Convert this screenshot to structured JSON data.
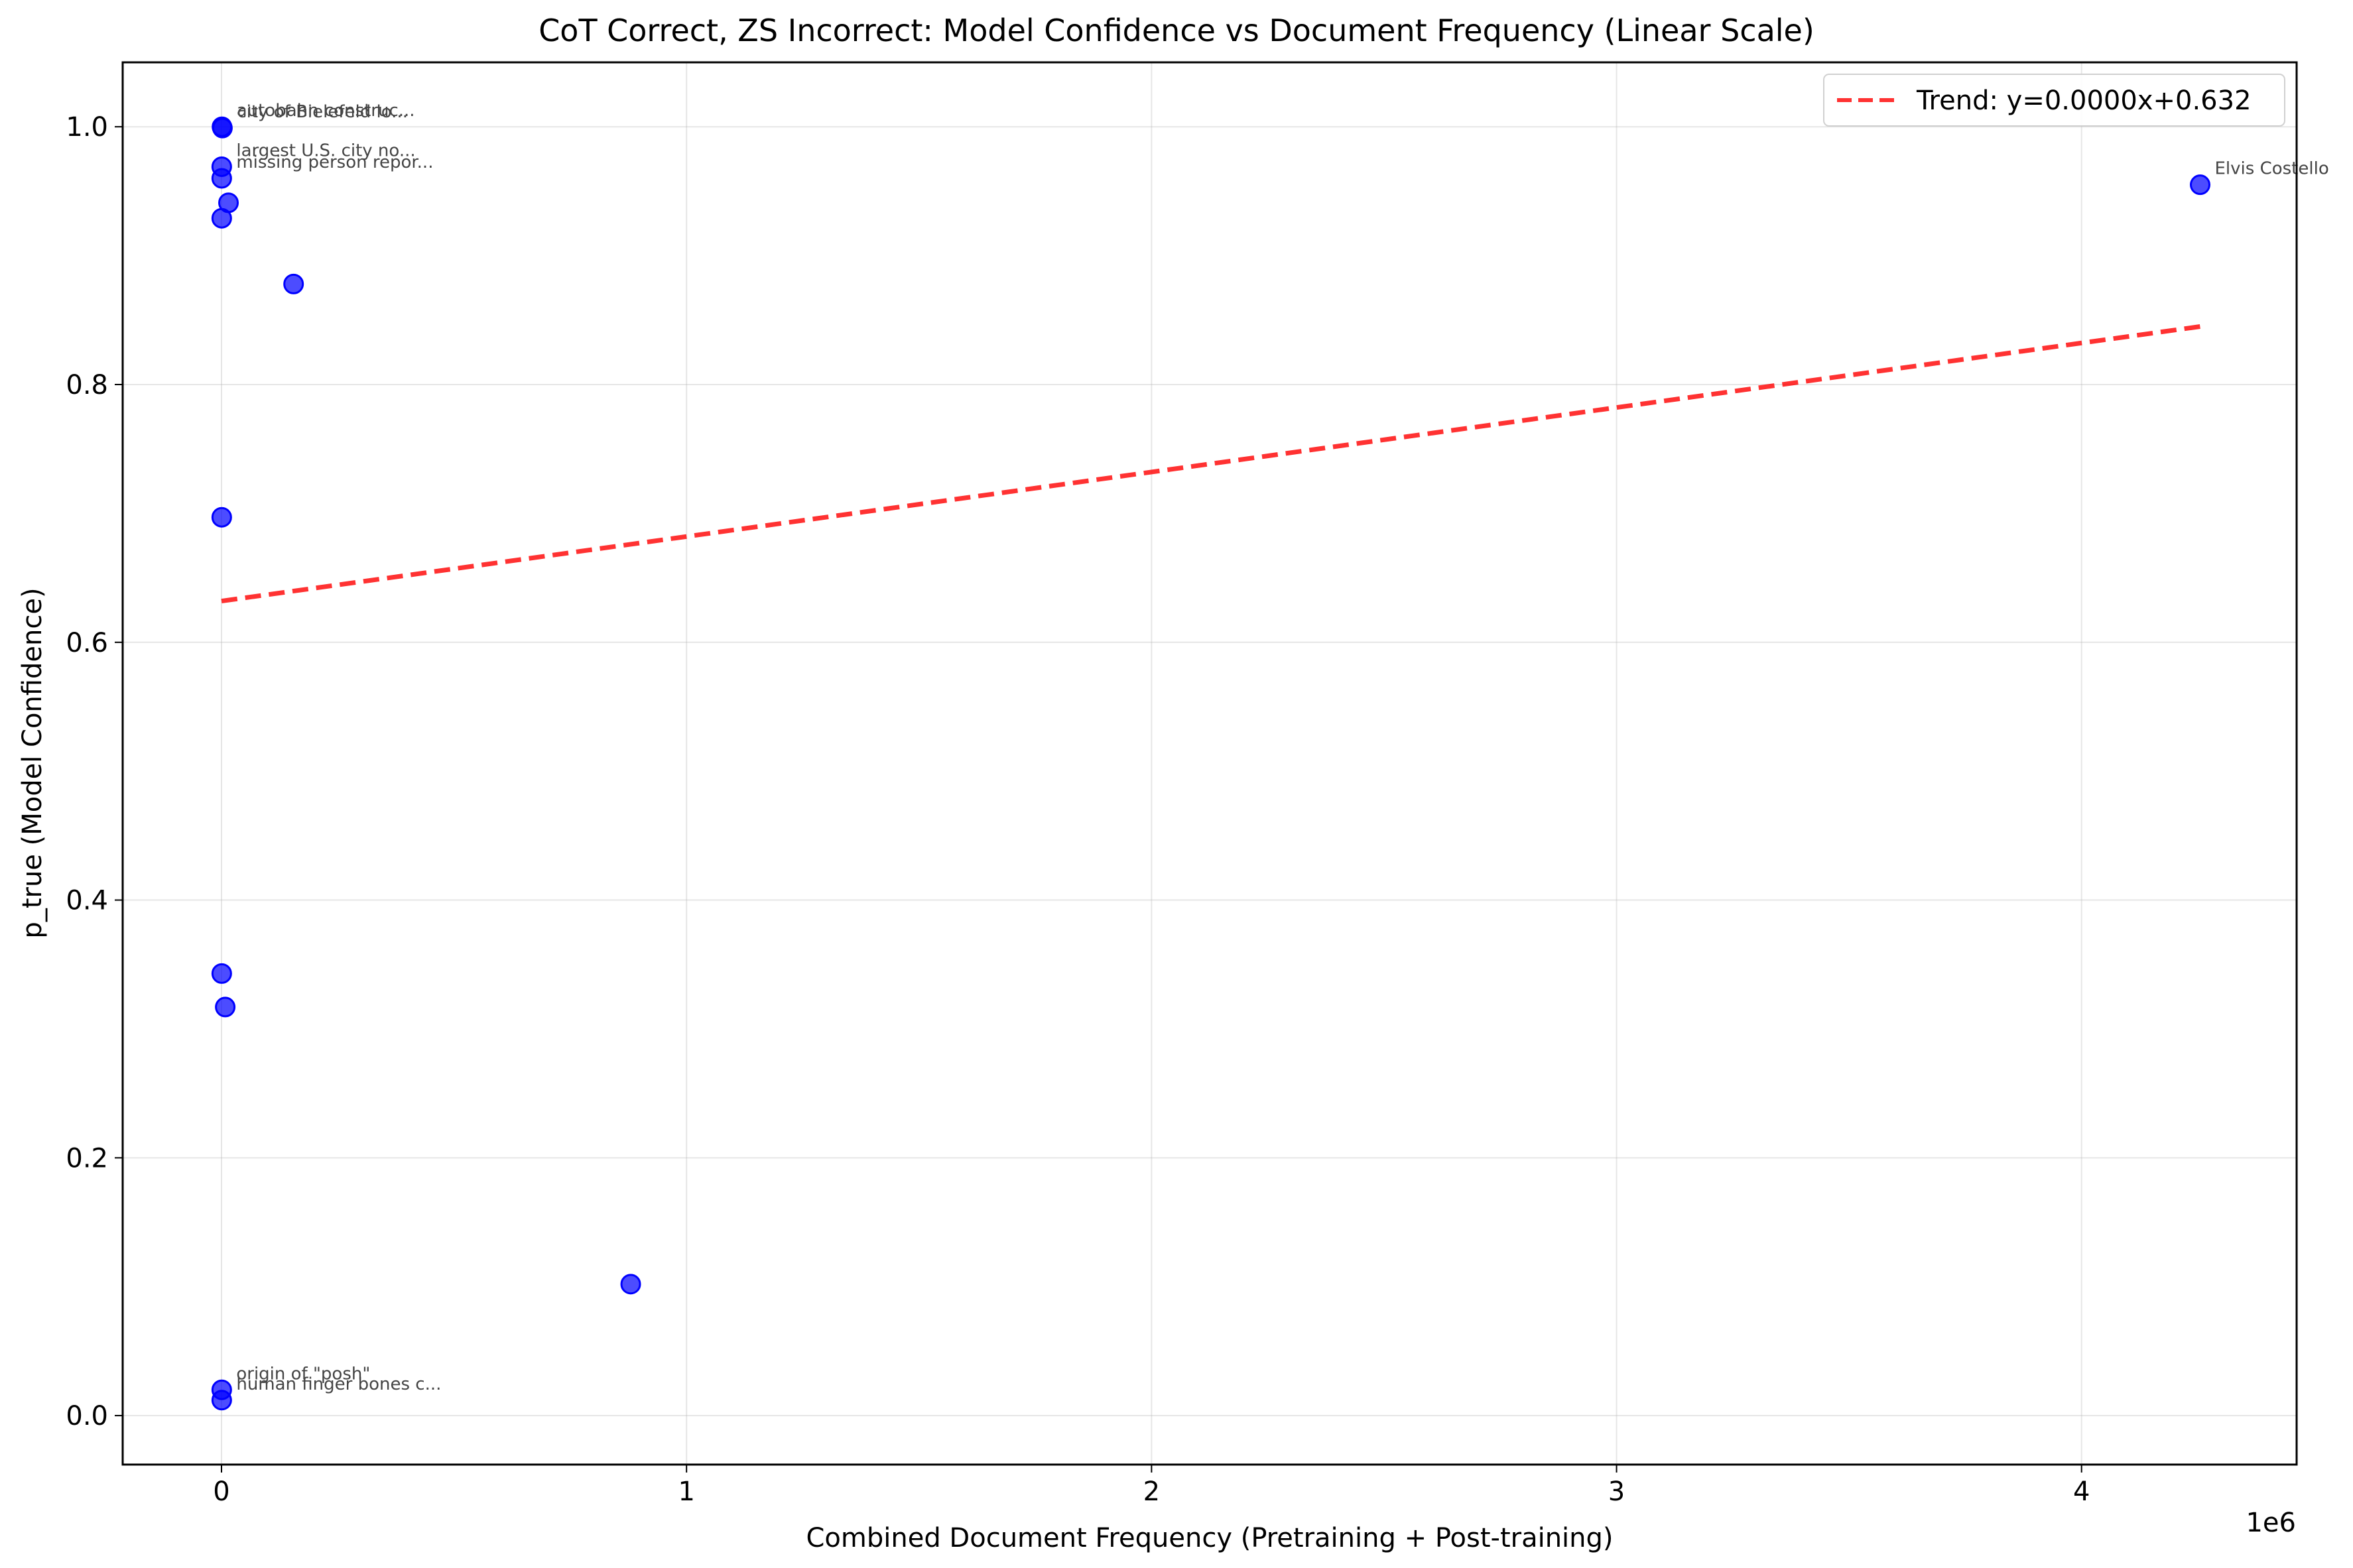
{
  "chart_data": {
    "type": "scatter",
    "title": "CoT Correct, ZS Incorrect: Model Confidence vs Document Frequency (Linear Scale)",
    "xlabel": "Combined Document Frequency (Pretraining + Post-training)",
    "ylabel": "p_true (Model Confidence)",
    "x_offset_label": "1e6",
    "x_scale_factor": 1000000,
    "xlim": [
      -0.2125,
      4.4625
    ],
    "ylim": [
      -0.038,
      1.05
    ],
    "x_ticks": [
      0,
      1,
      2,
      3,
      4
    ],
    "x_tick_labels": [
      "0",
      "1",
      "2",
      "3",
      "4"
    ],
    "y_ticks": [
      0.0,
      0.2,
      0.4,
      0.6,
      0.8,
      1.0
    ],
    "y_tick_labels": [
      "0.0",
      "0.2",
      "0.4",
      "0.6",
      "0.8",
      "1.0"
    ],
    "grid": true,
    "point_color": "#0000ff",
    "points": [
      {
        "x": 1000,
        "y": 1.0,
        "label": "autobahn construc..."
      },
      {
        "x": 2000,
        "y": 0.999,
        "label": "city of Bielefeld lo..."
      },
      {
        "x": 500,
        "y": 0.969,
        "label": "largest U.S. city no..."
      },
      {
        "x": 500,
        "y": 0.96,
        "label": "missing person repor..."
      },
      {
        "x": 15000,
        "y": 0.941,
        "label": ""
      },
      {
        "x": 500,
        "y": 0.929,
        "label": ""
      },
      {
        "x": 155000,
        "y": 0.878,
        "label": ""
      },
      {
        "x": 500,
        "y": 0.697,
        "label": ""
      },
      {
        "x": 500,
        "y": 0.343,
        "label": ""
      },
      {
        "x": 8000,
        "y": 0.317,
        "label": ""
      },
      {
        "x": 880000,
        "y": 0.102,
        "label": ""
      },
      {
        "x": 500,
        "y": 0.02,
        "label": "origin of \"posh\""
      },
      {
        "x": 500,
        "y": 0.012,
        "label": "human finger bones c..."
      },
      {
        "x": 4255000,
        "y": 0.955,
        "label": "Elvis Costello"
      }
    ],
    "trend": {
      "label": "Trend: y=0.0000x+0.632",
      "intercept": 0.632,
      "x_range": [
        0,
        4255000
      ],
      "y_range": [
        0.632,
        0.845
      ],
      "color": "#ff0000"
    },
    "legend_position": "top-right"
  }
}
